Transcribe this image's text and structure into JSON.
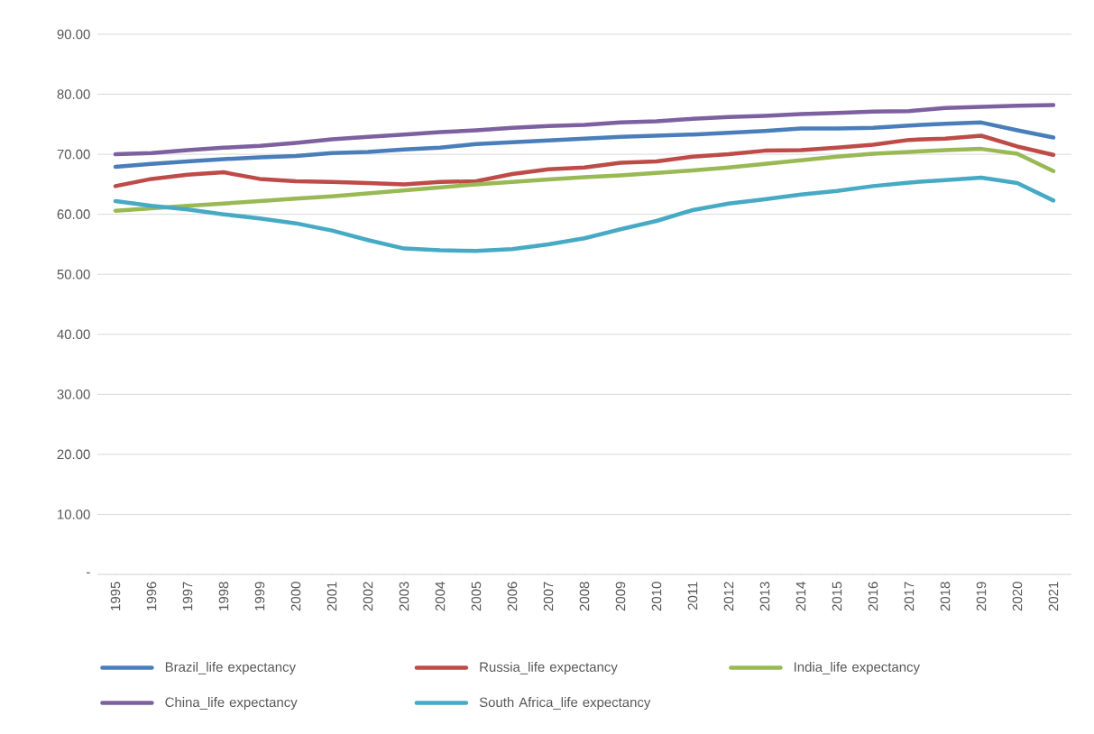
{
  "chart_data": {
    "type": "line",
    "categories": [
      "1995",
      "1996",
      "1997",
      "1998",
      "1999",
      "2000",
      "2001",
      "2002",
      "2003",
      "2004",
      "2005",
      "2006",
      "2007",
      "2008",
      "2009",
      "2010",
      "2011",
      "2012",
      "2013",
      "2014",
      "2015",
      "2016",
      "2017",
      "2018",
      "2019",
      "2020",
      "2021"
    ],
    "series": [
      {
        "name": "Brazil_life expectancy",
        "color": "#4a7ebb",
        "values": [
          67.9,
          68.4,
          68.8,
          69.2,
          69.5,
          69.7,
          70.2,
          70.4,
          70.8,
          71.1,
          71.7,
          72.0,
          72.3,
          72.6,
          72.9,
          73.1,
          73.3,
          73.6,
          73.9,
          74.3,
          74.3,
          74.4,
          74.8,
          75.1,
          75.3,
          74.0,
          72.8
        ]
      },
      {
        "name": "Russia_life expectancy",
        "color": "#be4b48",
        "values": [
          64.7,
          65.9,
          66.6,
          67.0,
          65.9,
          65.5,
          65.4,
          65.2,
          65.0,
          65.4,
          65.5,
          66.7,
          67.5,
          67.8,
          68.6,
          68.8,
          69.6,
          70.0,
          70.6,
          70.7,
          71.1,
          71.6,
          72.4,
          72.6,
          73.1,
          71.3,
          69.9
        ]
      },
      {
        "name": "India_life expectancy",
        "color": "#98b954",
        "values": [
          60.6,
          61.0,
          61.4,
          61.8,
          62.2,
          62.6,
          63.0,
          63.5,
          64.0,
          64.5,
          65.0,
          65.4,
          65.8,
          66.2,
          66.5,
          66.9,
          67.3,
          67.8,
          68.4,
          69.0,
          69.6,
          70.1,
          70.4,
          70.7,
          70.9,
          70.1,
          67.2
        ]
      },
      {
        "name": "China_life expectancy",
        "color": "#7d60a0",
        "values": [
          70.0,
          70.2,
          70.7,
          71.1,
          71.4,
          71.9,
          72.5,
          72.9,
          73.3,
          73.7,
          74.0,
          74.4,
          74.7,
          74.9,
          75.3,
          75.5,
          75.9,
          76.2,
          76.4,
          76.7,
          76.9,
          77.1,
          77.2,
          77.7,
          77.9,
          78.1,
          78.2
        ]
      },
      {
        "name": "South Africa_life expectancy",
        "color": "#46aac5",
        "values": [
          62.2,
          61.4,
          60.8,
          60.0,
          59.3,
          58.5,
          57.3,
          55.7,
          54.3,
          54.0,
          53.9,
          54.2,
          55.0,
          56.0,
          57.5,
          58.9,
          60.7,
          61.8,
          62.5,
          63.3,
          63.9,
          64.7,
          65.3,
          65.7,
          66.1,
          65.2,
          62.3
        ]
      }
    ],
    "ylim": [
      0,
      90
    ],
    "yticks": [
      {
        "value": 0,
        "label": "-"
      },
      {
        "value": 10,
        "label": "10.00"
      },
      {
        "value": 20,
        "label": "20.00"
      },
      {
        "value": 30,
        "label": "30.00"
      },
      {
        "value": 40,
        "label": "40.00"
      },
      {
        "value": 50,
        "label": "50.00"
      },
      {
        "value": 60,
        "label": "60.00"
      },
      {
        "value": 70,
        "label": "70.00"
      },
      {
        "value": 80,
        "label": "80.00"
      },
      {
        "value": 90,
        "label": "90.00"
      }
    ],
    "grid": "y",
    "legend": "bottom",
    "marker": "none",
    "line_style": "solid"
  }
}
